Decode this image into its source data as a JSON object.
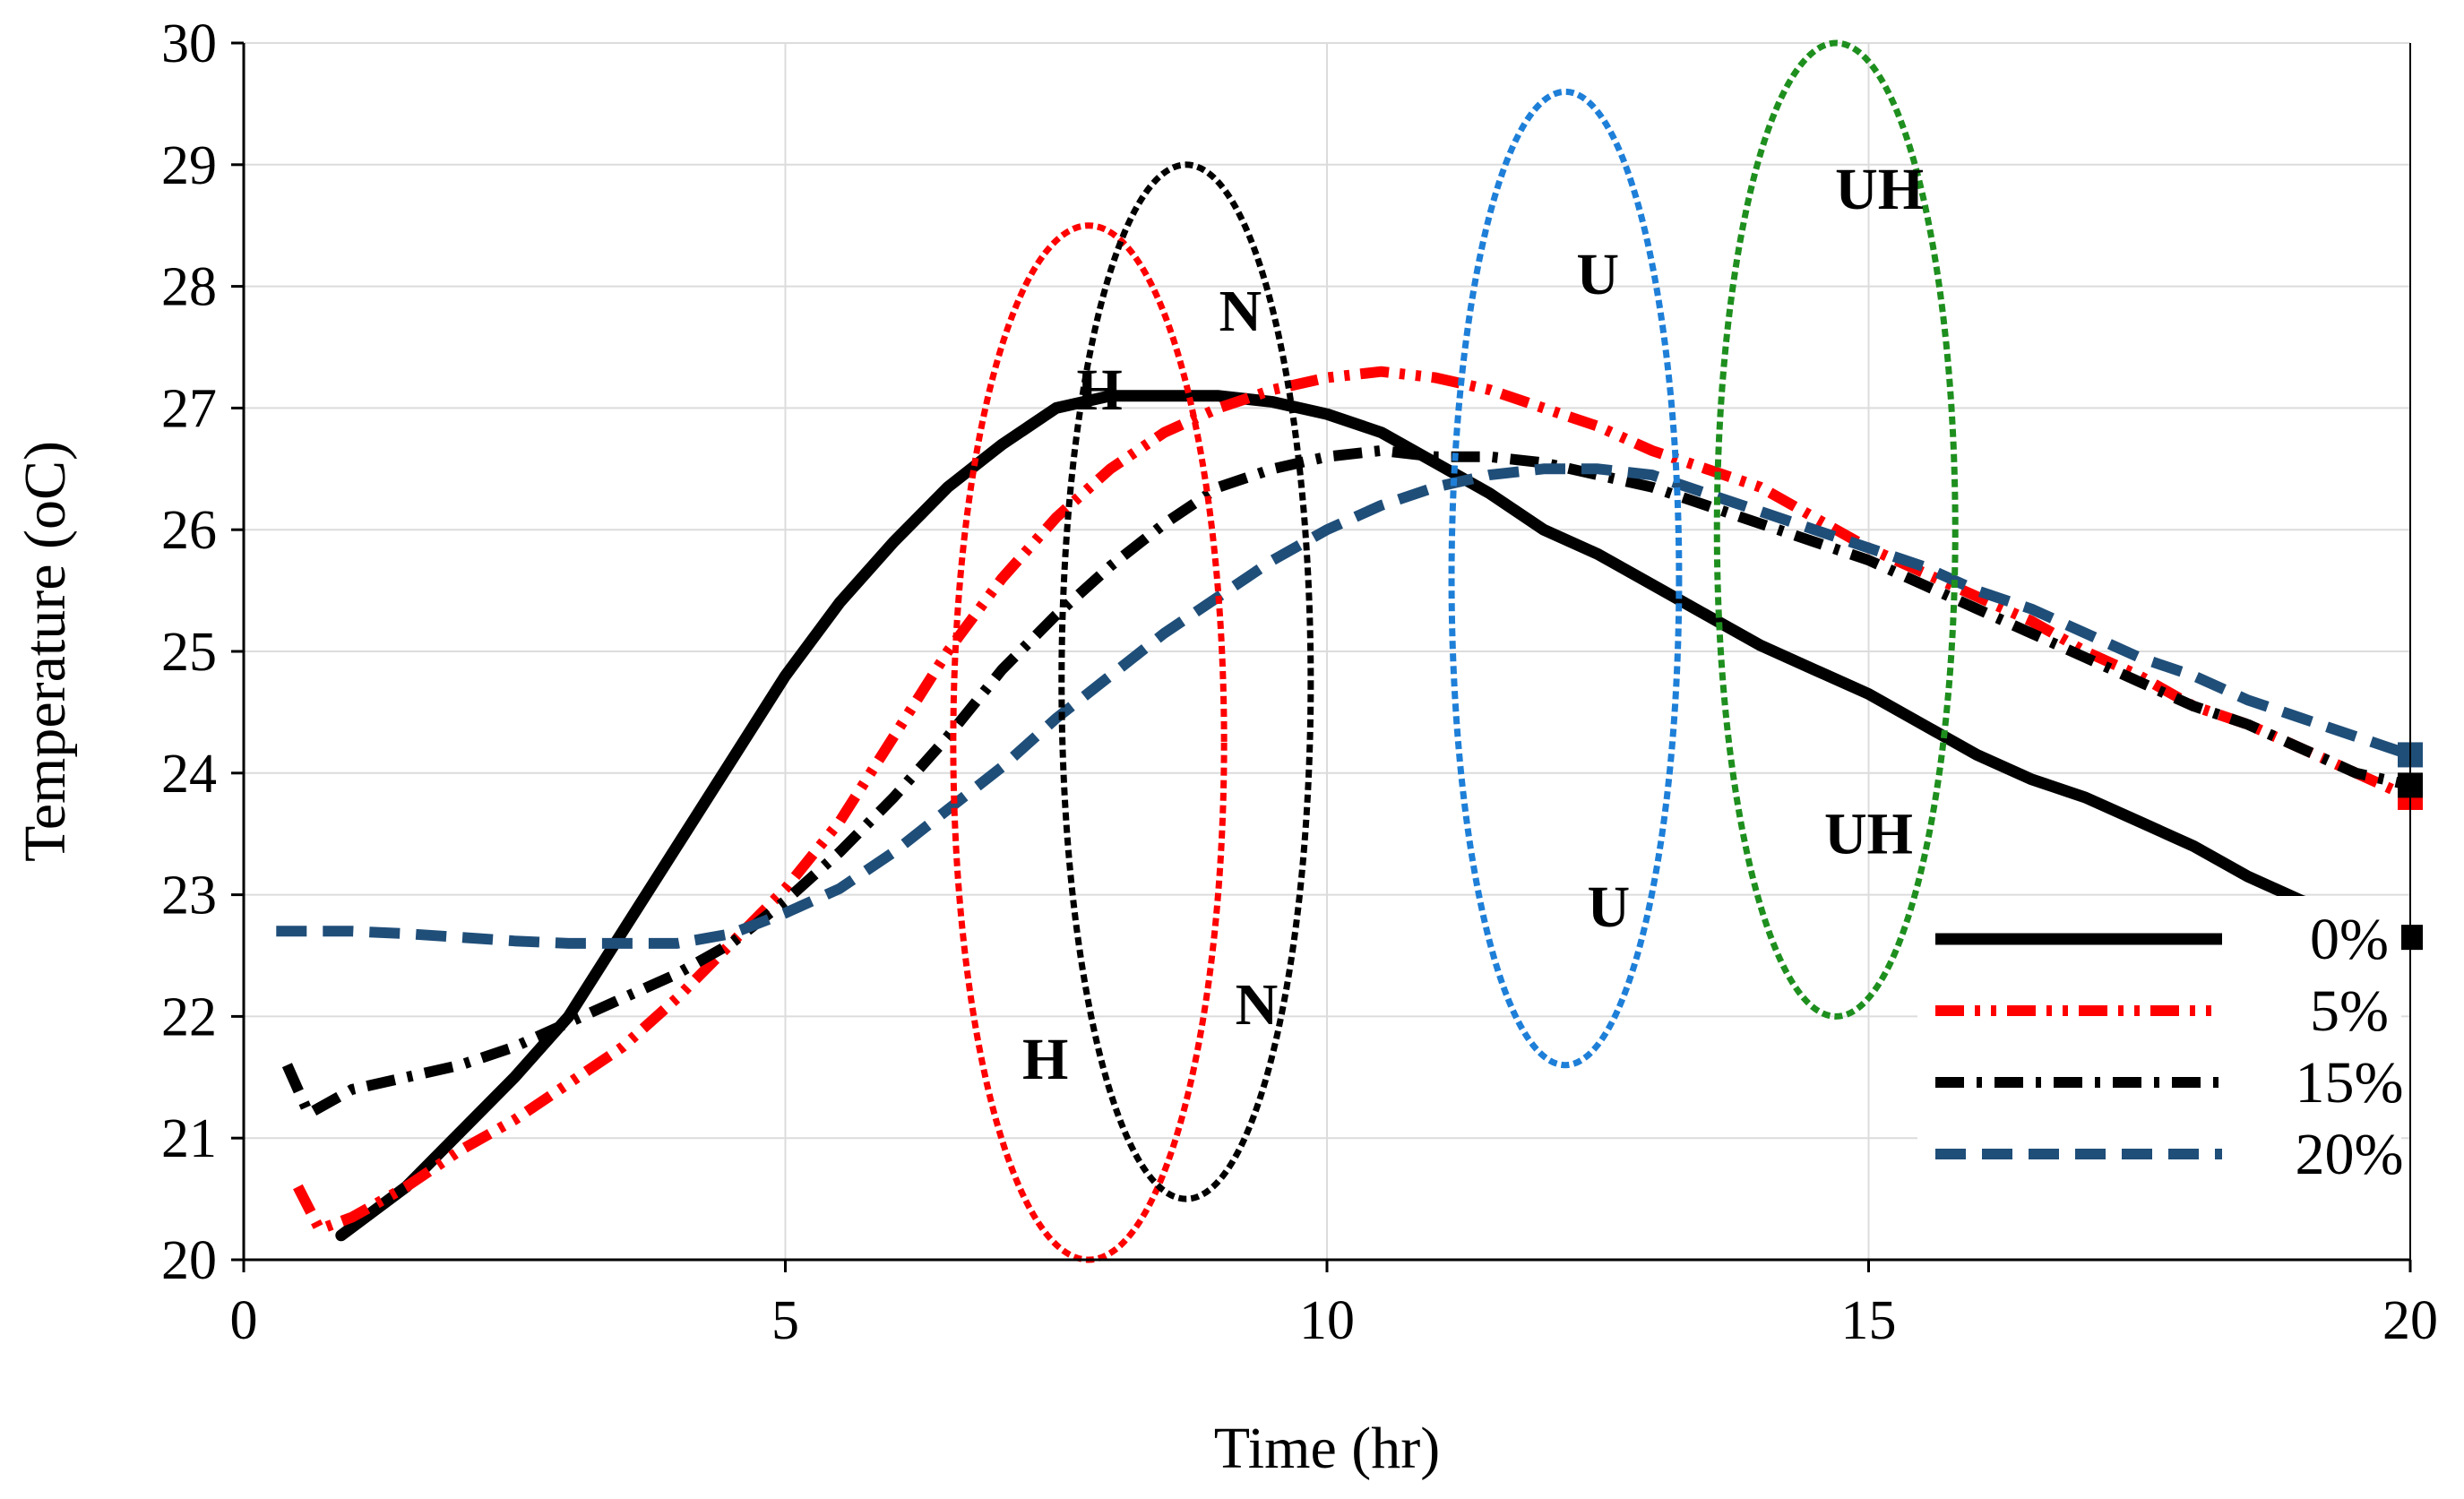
{
  "chart_data": {
    "type": "line",
    "title": "",
    "xlabel": "Time (hr)",
    "ylabel": "Temperature (oC)",
    "xlim": [
      0,
      20
    ],
    "ylim": [
      20,
      30
    ],
    "x_ticks": [
      "0",
      "5",
      "10",
      "15",
      "20"
    ],
    "y_ticks": [
      "20",
      "21",
      "22",
      "23",
      "24",
      "25",
      "26",
      "27",
      "28",
      "29",
      "30"
    ],
    "grid": true,
    "legend_position": "bottom-right",
    "series": [
      {
        "name": "0%",
        "color": "#000000",
        "style": "solid",
        "points": [
          [
            0.9,
            20.2
          ],
          [
            1.5,
            20.6
          ],
          [
            2.0,
            21.05
          ],
          [
            2.5,
            21.5
          ],
          [
            3.0,
            22.0
          ],
          [
            3.5,
            22.7
          ],
          [
            4.0,
            23.4
          ],
          [
            4.5,
            24.1
          ],
          [
            5.0,
            24.8
          ],
          [
            5.5,
            25.4
          ],
          [
            6.0,
            25.9
          ],
          [
            6.5,
            26.35
          ],
          [
            7.0,
            26.7
          ],
          [
            7.5,
            27.0
          ],
          [
            8.0,
            27.1
          ],
          [
            8.5,
            27.1
          ],
          [
            9.0,
            27.1
          ],
          [
            9.5,
            27.05
          ],
          [
            10.0,
            26.95
          ],
          [
            10.5,
            26.8
          ],
          [
            11.0,
            26.55
          ],
          [
            11.5,
            26.3
          ],
          [
            12.0,
            26.0
          ],
          [
            12.5,
            25.8
          ],
          [
            13.0,
            25.55
          ],
          [
            13.5,
            25.3
          ],
          [
            14.0,
            25.05
          ],
          [
            14.5,
            24.85
          ],
          [
            15.0,
            24.65
          ],
          [
            15.5,
            24.4
          ],
          [
            16.0,
            24.15
          ],
          [
            16.5,
            23.95
          ],
          [
            17.0,
            23.8
          ],
          [
            17.5,
            23.6
          ],
          [
            18.0,
            23.4
          ],
          [
            18.5,
            23.15
          ],
          [
            19.0,
            22.95
          ],
          [
            19.5,
            22.8
          ],
          [
            20.0,
            22.65
          ]
        ]
      },
      {
        "name": "5%",
        "color": "#ff0000",
        "style": "dash-dot-dot",
        "points": [
          [
            0.5,
            20.6
          ],
          [
            0.7,
            20.25
          ],
          [
            1.0,
            20.35
          ],
          [
            1.5,
            20.6
          ],
          [
            2.0,
            20.9
          ],
          [
            2.5,
            21.15
          ],
          [
            3.0,
            21.45
          ],
          [
            3.5,
            21.75
          ],
          [
            4.0,
            22.15
          ],
          [
            4.5,
            22.6
          ],
          [
            5.0,
            23.05
          ],
          [
            5.5,
            23.6
          ],
          [
            6.0,
            24.3
          ],
          [
            6.5,
            25.0
          ],
          [
            7.0,
            25.6
          ],
          [
            7.5,
            26.1
          ],
          [
            8.0,
            26.5
          ],
          [
            8.5,
            26.8
          ],
          [
            9.0,
            27.0
          ],
          [
            9.5,
            27.15
          ],
          [
            10.0,
            27.25
          ],
          [
            10.5,
            27.3
          ],
          [
            11.0,
            27.25
          ],
          [
            11.5,
            27.15
          ],
          [
            12.0,
            27.0
          ],
          [
            12.5,
            26.85
          ],
          [
            13.0,
            26.65
          ],
          [
            13.5,
            26.5
          ],
          [
            14.0,
            26.35
          ],
          [
            14.5,
            26.1
          ],
          [
            15.0,
            25.85
          ],
          [
            15.5,
            25.65
          ],
          [
            16.0,
            25.45
          ],
          [
            16.5,
            25.25
          ],
          [
            17.0,
            25.0
          ],
          [
            17.5,
            24.8
          ],
          [
            18.0,
            24.55
          ],
          [
            18.5,
            24.4
          ],
          [
            19.0,
            24.2
          ],
          [
            19.5,
            24.0
          ],
          [
            20.0,
            23.8
          ]
        ]
      },
      {
        "name": "15%",
        "color": "#000000",
        "style": "dash-dot",
        "points": [
          [
            0.4,
            21.6
          ],
          [
            0.6,
            21.2
          ],
          [
            1.0,
            21.4
          ],
          [
            1.5,
            21.5
          ],
          [
            2.0,
            21.6
          ],
          [
            2.5,
            21.75
          ],
          [
            3.0,
            21.95
          ],
          [
            3.5,
            22.15
          ],
          [
            4.0,
            22.35
          ],
          [
            4.5,
            22.6
          ],
          [
            5.0,
            22.95
          ],
          [
            5.5,
            23.35
          ],
          [
            6.0,
            23.8
          ],
          [
            6.5,
            24.3
          ],
          [
            7.0,
            24.85
          ],
          [
            7.5,
            25.3
          ],
          [
            8.0,
            25.7
          ],
          [
            8.5,
            26.05
          ],
          [
            9.0,
            26.35
          ],
          [
            9.5,
            26.5
          ],
          [
            10.0,
            26.6
          ],
          [
            10.5,
            26.65
          ],
          [
            11.0,
            26.6
          ],
          [
            11.5,
            26.6
          ],
          [
            12.0,
            26.55
          ],
          [
            12.5,
            26.45
          ],
          [
            13.0,
            26.35
          ],
          [
            13.5,
            26.2
          ],
          [
            14.0,
            26.05
          ],
          [
            14.5,
            25.9
          ],
          [
            15.0,
            25.75
          ],
          [
            15.5,
            25.55
          ],
          [
            16.0,
            25.35
          ],
          [
            16.5,
            25.15
          ],
          [
            17.0,
            24.95
          ],
          [
            17.5,
            24.75
          ],
          [
            18.0,
            24.55
          ],
          [
            18.5,
            24.4
          ],
          [
            19.0,
            24.2
          ],
          [
            19.5,
            24.0
          ],
          [
            20.0,
            23.9
          ]
        ]
      },
      {
        "name": "20%",
        "color": "#1f4e79",
        "style": "dashed",
        "points": [
          [
            0.3,
            22.7
          ],
          [
            1.0,
            22.7
          ],
          [
            1.5,
            22.68
          ],
          [
            2.0,
            22.65
          ],
          [
            2.5,
            22.62
          ],
          [
            3.0,
            22.6
          ],
          [
            3.5,
            22.6
          ],
          [
            4.0,
            22.6
          ],
          [
            4.5,
            22.68
          ],
          [
            5.0,
            22.85
          ],
          [
            5.5,
            23.05
          ],
          [
            6.0,
            23.35
          ],
          [
            6.5,
            23.7
          ],
          [
            7.0,
            24.05
          ],
          [
            7.5,
            24.45
          ],
          [
            8.0,
            24.8
          ],
          [
            8.5,
            25.15
          ],
          [
            9.0,
            25.45
          ],
          [
            9.5,
            25.75
          ],
          [
            10.0,
            26.0
          ],
          [
            10.5,
            26.2
          ],
          [
            11.0,
            26.35
          ],
          [
            11.5,
            26.45
          ],
          [
            12.0,
            26.5
          ],
          [
            12.5,
            26.5
          ],
          [
            13.0,
            26.45
          ],
          [
            13.5,
            26.3
          ],
          [
            14.0,
            26.15
          ],
          [
            14.5,
            26.0
          ],
          [
            15.0,
            25.85
          ],
          [
            15.5,
            25.7
          ],
          [
            16.0,
            25.5
          ],
          [
            16.5,
            25.35
          ],
          [
            17.0,
            25.15
          ],
          [
            17.5,
            24.95
          ],
          [
            18.0,
            24.8
          ],
          [
            18.5,
            24.6
          ],
          [
            19.0,
            24.45
          ],
          [
            19.5,
            24.3
          ],
          [
            20.0,
            24.15
          ]
        ]
      }
    ],
    "annotations": [
      {
        "label": "H",
        "color": "#ff0000",
        "center": [
          7.8,
          24.25
        ],
        "half_width": 1.25,
        "half_height": 4.25,
        "label_top": [
          7.9,
          27.15
        ],
        "label_bottom": [
          7.4,
          21.65
        ]
      },
      {
        "label": "N",
        "color": "#000000",
        "center": [
          8.7,
          24.75
        ],
        "half_width": 1.15,
        "half_height": 4.25,
        "label_top": [
          9.2,
          27.8
        ],
        "label_bottom": [
          9.35,
          22.1
        ]
      },
      {
        "label": "U",
        "color": "#1e7fd8",
        "center": [
          12.2,
          25.6
        ],
        "half_width": 1.05,
        "half_height": 4.0,
        "label_top": [
          12.5,
          28.1
        ],
        "label_bottom": [
          12.6,
          22.9
        ]
      },
      {
        "label": "UH",
        "color": "#1e8f1e",
        "center": [
          14.7,
          26.0
        ],
        "half_width": 1.1,
        "half_height": 4.0,
        "label_top": [
          15.1,
          28.8
        ],
        "label_bottom": [
          15.0,
          23.5
        ]
      }
    ]
  }
}
